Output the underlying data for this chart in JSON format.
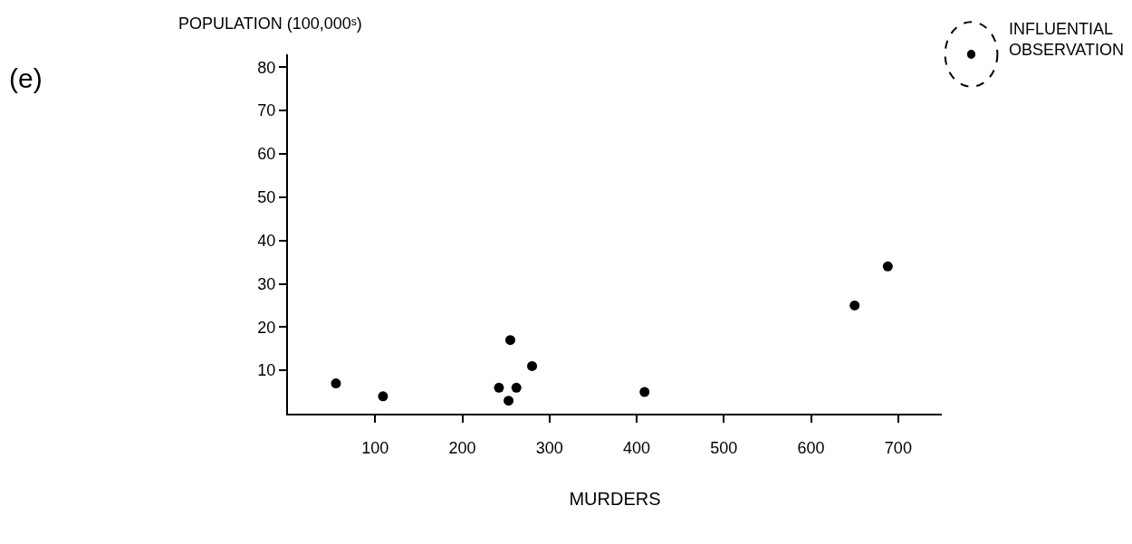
{
  "chart_data": {
    "type": "scatter",
    "ylabel": "POPULATION (100,000ˢ)",
    "xlabel": "MURDERS",
    "annotations": [
      "(e)",
      "INFLUENTIAL OBSERVATION"
    ],
    "x": [
      55,
      109,
      242,
      253,
      255,
      262,
      280,
      409,
      650,
      688
    ],
    "series": [
      {
        "color": "#000000",
        "values": [
          7,
          4,
          6,
          3,
          17,
          6,
          11,
          5,
          25,
          34
        ]
      }
    ],
    "xlim": [
      0,
      750
    ],
    "xticks": [
      100,
      200,
      300,
      400,
      500,
      600,
      700
    ],
    "ylim": [
      0,
      83
    ],
    "yticks": [
      10,
      20,
      30,
      40,
      50,
      60,
      70,
      80
    ],
    "marker": "circle"
  }
}
